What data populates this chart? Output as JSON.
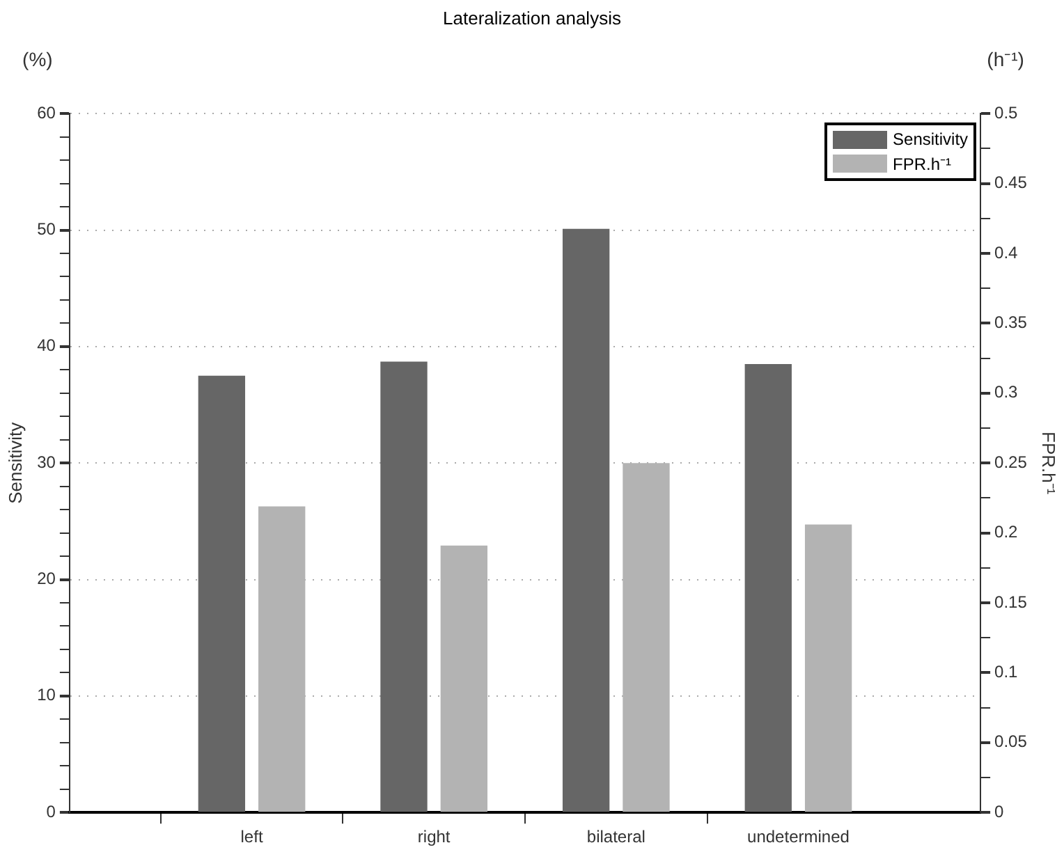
{
  "chart_data": {
    "type": "bar",
    "title": "Lateralization analysis",
    "ylabel": "Sensitivity",
    "y2label": "FPR.h⁻¹",
    "annotations": [
      "(%)",
      "(h⁻¹)"
    ],
    "categories": [
      "left",
      "right",
      "bilateral",
      "undetermined"
    ],
    "series": [
      {
        "name": "Sensitivity",
        "color": "#666666",
        "values": [
          37.5,
          38.7,
          50.1,
          38.5
        ]
      },
      {
        "name": "FPR.h⁻¹",
        "color": "#b3b3b3",
        "values": [
          0.219,
          0.191,
          0.25,
          0.206
        ],
        "axis": "y2"
      }
    ],
    "ylim": [
      0,
      60
    ],
    "yticks": [
      0,
      {
        "value": 2,
        "label": null
      },
      {
        "value": 4,
        "label": null
      },
      {
        "value": 6,
        "label": null
      },
      {
        "value": 8,
        "label": null
      },
      10,
      {
        "value": 12,
        "label": null
      },
      {
        "value": 14,
        "label": null
      },
      {
        "value": 16,
        "label": null
      },
      {
        "value": 18,
        "label": null
      },
      20,
      {
        "value": 22,
        "label": null
      },
      {
        "value": 24,
        "label": null
      },
      {
        "value": 26,
        "label": null
      },
      {
        "value": 28,
        "label": null
      },
      30,
      {
        "value": 32,
        "label": null
      },
      {
        "value": 34,
        "label": null
      },
      {
        "value": 36,
        "label": null
      },
      {
        "value": 38,
        "label": null
      },
      40,
      {
        "value": 42,
        "label": null
      },
      {
        "value": 44,
        "label": null
      },
      {
        "value": 46,
        "label": null
      },
      {
        "value": 48,
        "label": null
      },
      50,
      {
        "value": 52,
        "label": null
      },
      {
        "value": 54,
        "label": null
      },
      {
        "value": 56,
        "label": null
      },
      {
        "value": 58,
        "label": null
      },
      60
    ],
    "y2lim": [
      0,
      0.5
    ],
    "y2ticks": [
      0,
      {
        "value": 0.025,
        "label": null
      },
      0.05,
      {
        "value": 0.075,
        "label": null
      },
      0.1,
      {
        "value": 0.125,
        "label": null
      },
      0.15,
      {
        "value": 0.175,
        "label": null
      },
      0.2,
      {
        "value": 0.225,
        "label": null
      },
      0.25,
      {
        "value": 0.275,
        "label": null
      },
      0.3,
      {
        "value": 0.325,
        "label": null
      },
      0.35,
      {
        "value": 0.375,
        "label": null
      },
      0.4,
      {
        "value": 0.425,
        "label": null
      },
      0.45,
      {
        "value": 0.475,
        "label": null
      },
      0.5
    ],
    "grid": "y",
    "legend": "top right"
  }
}
